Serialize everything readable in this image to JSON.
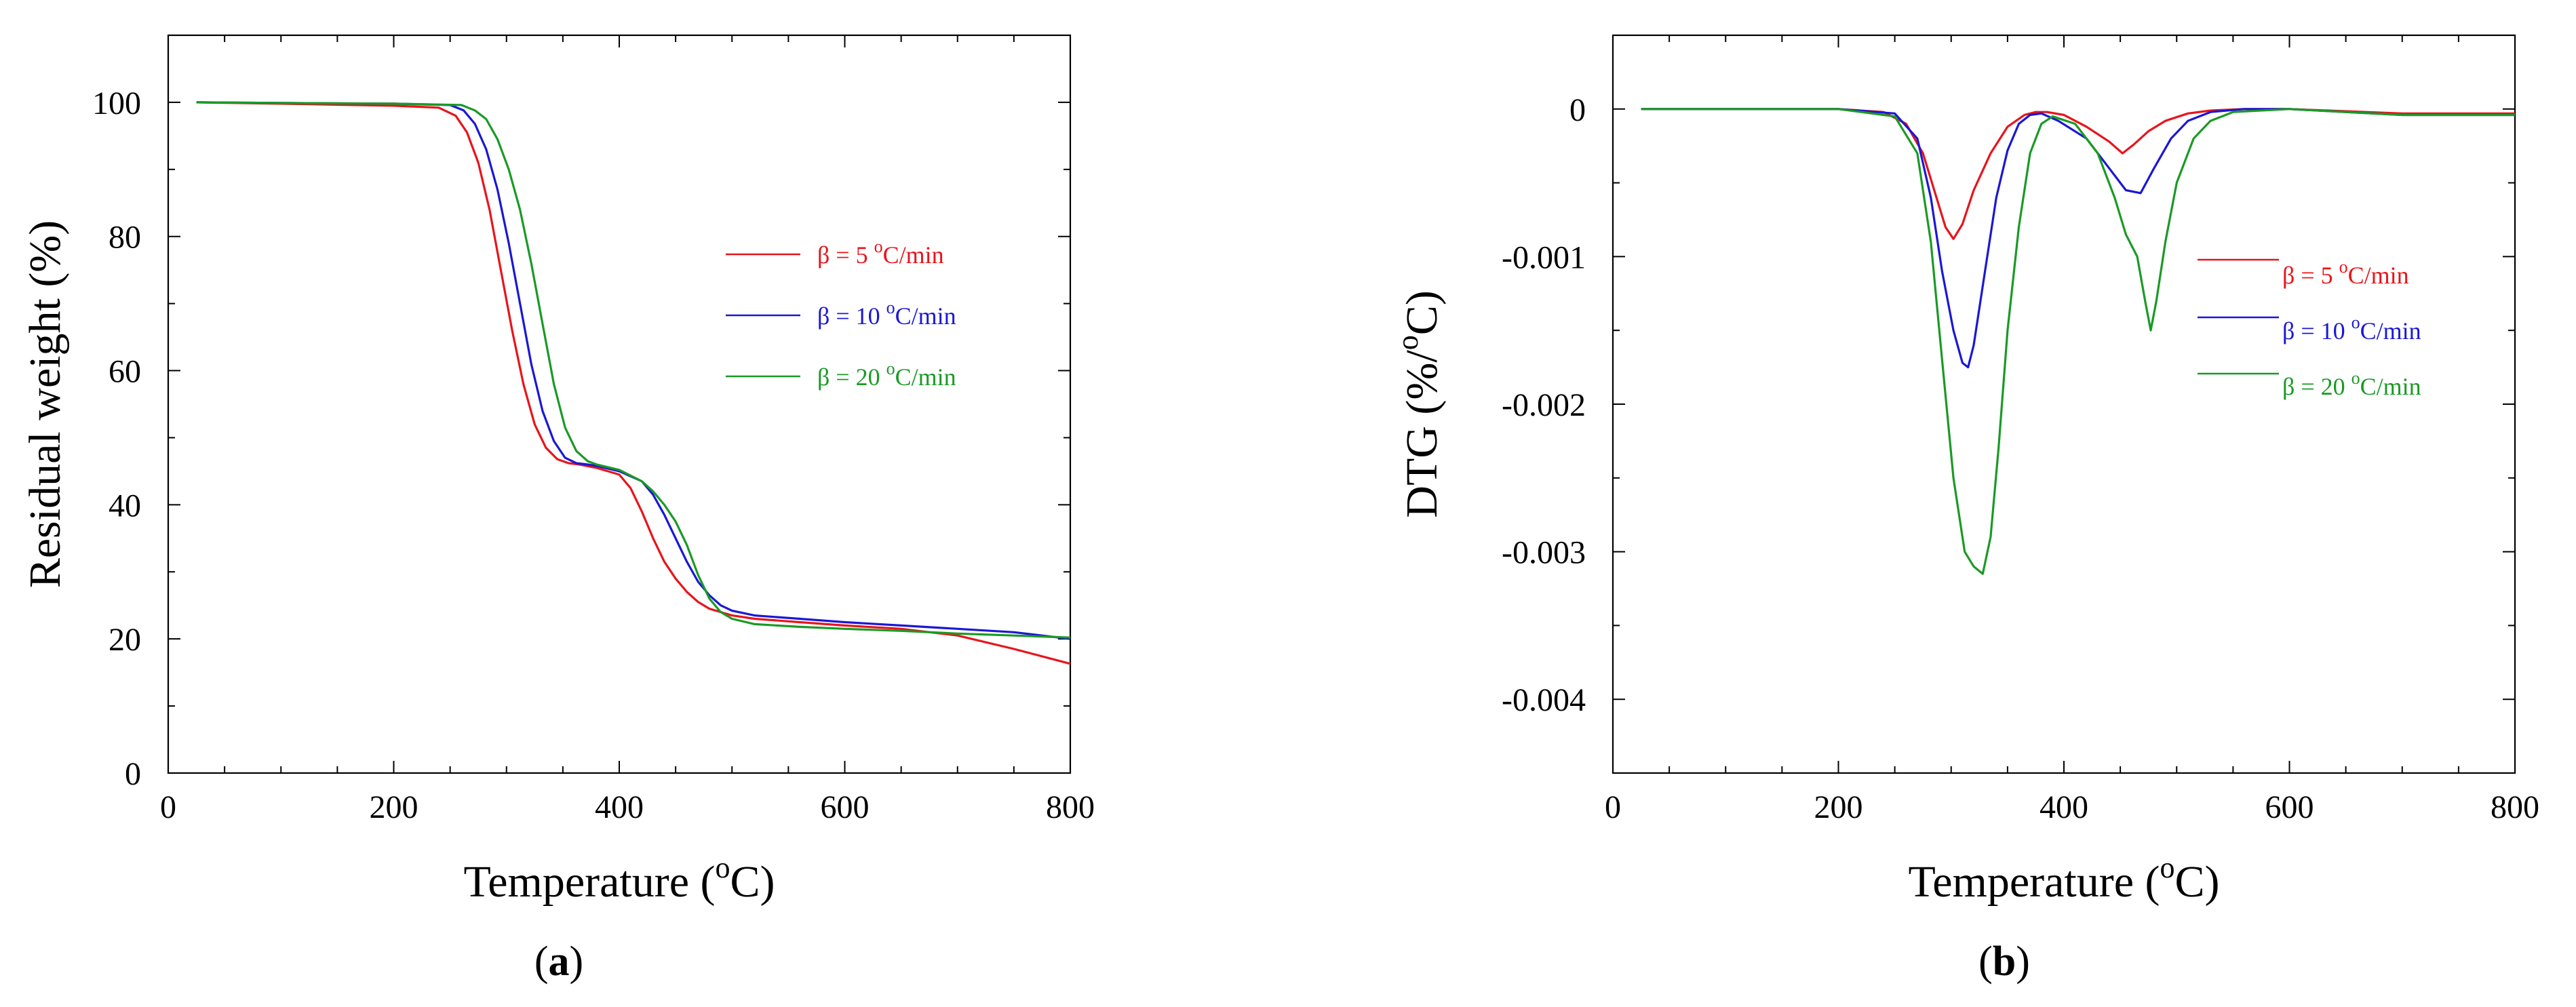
{
  "chart_data": [
    {
      "type": "line",
      "panel_label": "a",
      "xlabel": "Temperature",
      "xlabel_unit": "(oC)",
      "ylabel": "Residual weight (%)",
      "xlim": [
        0,
        800
      ],
      "ylim": [
        0,
        110
      ],
      "xticks": [
        0,
        200,
        400,
        600,
        800
      ],
      "yticks": [
        0,
        20,
        40,
        60,
        80,
        100
      ],
      "legend_position": "center-right",
      "series": [
        {
          "name": "β = 5 oC/min",
          "color": "#e8141b",
          "x": [
            25,
            100,
            200,
            240,
            255,
            265,
            275,
            285,
            295,
            305,
            315,
            325,
            335,
            345,
            355,
            365,
            380,
            400,
            410,
            420,
            430,
            440,
            450,
            460,
            470,
            480,
            490,
            500,
            520,
            560,
            600,
            650,
            700,
            750,
            800
          ],
          "y": [
            100,
            99.8,
            99.5,
            99.2,
            98.0,
            95.5,
            91,
            84,
            75,
            66,
            58,
            52,
            48.5,
            46.8,
            46.2,
            46,
            45.5,
            44.5,
            42.5,
            39,
            35,
            31.5,
            29,
            27,
            25.5,
            24.5,
            24,
            23.5,
            23,
            22.5,
            22,
            21.5,
            20.5,
            18.5,
            16.3
          ]
        },
        {
          "name": "β = 10 oC/min",
          "color": "#1b17d4",
          "x": [
            25,
            100,
            200,
            250,
            262,
            272,
            282,
            292,
            302,
            312,
            322,
            332,
            342,
            352,
            362,
            372,
            380,
            400,
            420,
            430,
            440,
            450,
            460,
            470,
            480,
            490,
            500,
            520,
            560,
            600,
            650,
            700,
            750,
            800
          ],
          "y": [
            100,
            99.9,
            99.8,
            99.6,
            98.8,
            96.8,
            93,
            87,
            79,
            70,
            61,
            54,
            49.5,
            47,
            46.2,
            46,
            45.8,
            45,
            43.5,
            41.5,
            38.5,
            35,
            31.5,
            28.5,
            26.5,
            25,
            24.2,
            23.5,
            23,
            22.5,
            22,
            21.5,
            21,
            20
          ]
        },
        {
          "name": "β = 20 oC/min",
          "color": "#1a9a25",
          "x": [
            25,
            100,
            200,
            260,
            272,
            282,
            292,
            302,
            312,
            322,
            332,
            342,
            352,
            362,
            372,
            380,
            400,
            420,
            430,
            440,
            450,
            460,
            470,
            480,
            490,
            500,
            520,
            560,
            600,
            650,
            700,
            750,
            800
          ],
          "y": [
            100,
            99.9,
            99.8,
            99.6,
            98.8,
            97.5,
            94.5,
            90,
            84,
            76,
            67,
            58,
            51.5,
            48,
            46.5,
            46,
            45.2,
            43.5,
            42,
            40,
            37.5,
            34,
            29.5,
            26,
            24,
            23,
            22.2,
            21.8,
            21.5,
            21.2,
            20.8,
            20.5,
            20.2
          ]
        }
      ]
    },
    {
      "type": "line",
      "panel_label": "b",
      "xlabel": "Temperature",
      "xlabel_unit": "(oC)",
      "ylabel": "DTG (%/oC)",
      "xlim": [
        0,
        800
      ],
      "ylim": [
        -0.0045,
        0.0005
      ],
      "xticks": [
        0,
        200,
        400,
        600,
        800
      ],
      "yticks": [
        0,
        -0.001,
        -0.002,
        -0.003,
        -0.004
      ],
      "ytick_labels": [
        "0",
        "-0.001",
        "-0.002",
        "-0.003",
        "-0.004"
      ],
      "legend_position": "center-right",
      "series": [
        {
          "name": "β = 5 oC/min",
          "color": "#e8141b",
          "x": [
            25,
            100,
            200,
            240,
            260,
            275,
            285,
            295,
            302,
            310,
            320,
            335,
            350,
            365,
            375,
            385,
            400,
            420,
            440,
            452,
            462,
            475,
            490,
            510,
            530,
            560,
            600,
            700,
            800
          ],
          "y": [
            0,
            0,
            0,
            -2e-05,
            -0.0001,
            -0.0003,
            -0.00055,
            -0.0008,
            -0.00088,
            -0.00078,
            -0.00055,
            -0.0003,
            -0.00012,
            -4e-05,
            -2e-05,
            -2e-05,
            -4e-05,
            -0.00012,
            -0.00022,
            -0.0003,
            -0.00024,
            -0.00015,
            -8e-05,
            -3e-05,
            -1e-05,
            0,
            0,
            -3e-05,
            -3e-05
          ]
        },
        {
          "name": "β = 10 oC/min",
          "color": "#1b17d4",
          "x": [
            25,
            100,
            200,
            250,
            270,
            282,
            292,
            302,
            310,
            315,
            320,
            330,
            340,
            350,
            360,
            370,
            380,
            395,
            420,
            440,
            455,
            468,
            480,
            495,
            510,
            530,
            560,
            600,
            700,
            800
          ],
          "y": [
            0,
            0,
            0,
            -3e-05,
            -0.0002,
            -0.0006,
            -0.0011,
            -0.0015,
            -0.00172,
            -0.00175,
            -0.0016,
            -0.0011,
            -0.0006,
            -0.00028,
            -0.0001,
            -4e-05,
            -3e-05,
            -8e-05,
            -0.0002,
            -0.0004,
            -0.00055,
            -0.00057,
            -0.0004,
            -0.0002,
            -8e-05,
            -2e-05,
            0,
            0,
            -4e-05,
            -4e-05
          ]
        },
        {
          "name": "β = 20 oC/min",
          "color": "#1a9a25",
          "x": [
            25,
            100,
            200,
            250,
            270,
            282,
            292,
            302,
            312,
            320,
            328,
            335,
            342,
            350,
            360,
            370,
            380,
            390,
            410,
            430,
            445,
            455,
            465,
            472,
            477,
            482,
            490,
            500,
            515,
            530,
            550,
            600,
            700,
            800
          ],
          "y": [
            0,
            0,
            0,
            -5e-05,
            -0.0003,
            -0.0009,
            -0.0017,
            -0.0025,
            -0.003,
            -0.0031,
            -0.00315,
            -0.0029,
            -0.0023,
            -0.0015,
            -0.0008,
            -0.0003,
            -0.0001,
            -5e-05,
            -0.0001,
            -0.0003,
            -0.0006,
            -0.00085,
            -0.001,
            -0.0013,
            -0.0015,
            -0.0013,
            -0.0009,
            -0.0005,
            -0.0002,
            -8e-05,
            -2e-05,
            0,
            -4e-05,
            -4e-05
          ]
        }
      ]
    }
  ]
}
